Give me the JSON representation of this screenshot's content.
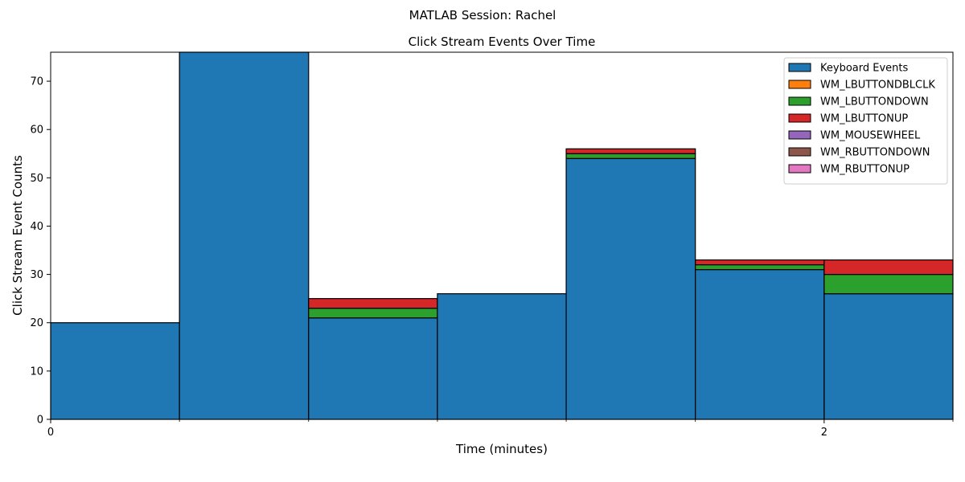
{
  "figure": {
    "suptitle": "MATLAB Session: Rachel"
  },
  "chart_data": {
    "type": "bar",
    "stacked": true,
    "title": "Click Stream Events Over Time",
    "xlabel": "Time (minutes)",
    "ylabel": "Click Stream Event Counts",
    "xlim": [
      0,
      2.333
    ],
    "ylim": [
      0,
      76
    ],
    "x_ticks": [
      0,
      2
    ],
    "x_minor_ticks": [
      0.333,
      0.667,
      1.0,
      1.333,
      1.667,
      2.333
    ],
    "y_ticks": [
      0,
      10,
      20,
      30,
      40,
      50,
      60,
      70
    ],
    "grid": false,
    "legend_position": "top-right",
    "bins": [
      [
        0,
        0.333
      ],
      [
        0.333,
        0.667
      ],
      [
        0.667,
        1.0
      ],
      [
        1.0,
        1.333
      ],
      [
        1.333,
        1.667
      ],
      [
        1.667,
        2.0
      ],
      [
        2.0,
        2.333
      ]
    ],
    "series": [
      {
        "name": "Keyboard Events",
        "color": "#1f77b4",
        "values": [
          20,
          76,
          21,
          26,
          54,
          31,
          26
        ]
      },
      {
        "name": "WM_LBUTTONDBLCLK",
        "color": "#ff7f0e",
        "values": [
          0,
          0,
          0,
          0,
          0,
          0,
          0
        ]
      },
      {
        "name": "WM_LBUTTONDOWN",
        "color": "#2ca02c",
        "values": [
          0,
          0,
          2,
          0,
          1,
          1,
          4
        ]
      },
      {
        "name": "WM_LBUTTONUP",
        "color": "#d62728",
        "values": [
          0,
          0,
          2,
          0,
          1,
          1,
          3
        ]
      },
      {
        "name": "WM_MOUSEWHEEL",
        "color": "#9467bd",
        "values": [
          0,
          0,
          0,
          0,
          0,
          0,
          0
        ]
      },
      {
        "name": "WM_RBUTTONDOWN",
        "color": "#8c564b",
        "values": [
          0,
          0,
          0,
          0,
          0,
          0,
          0
        ]
      },
      {
        "name": "WM_RBUTTONUP",
        "color": "#e377c2",
        "values": [
          0,
          0,
          0,
          0,
          0,
          0,
          0
        ]
      }
    ]
  }
}
